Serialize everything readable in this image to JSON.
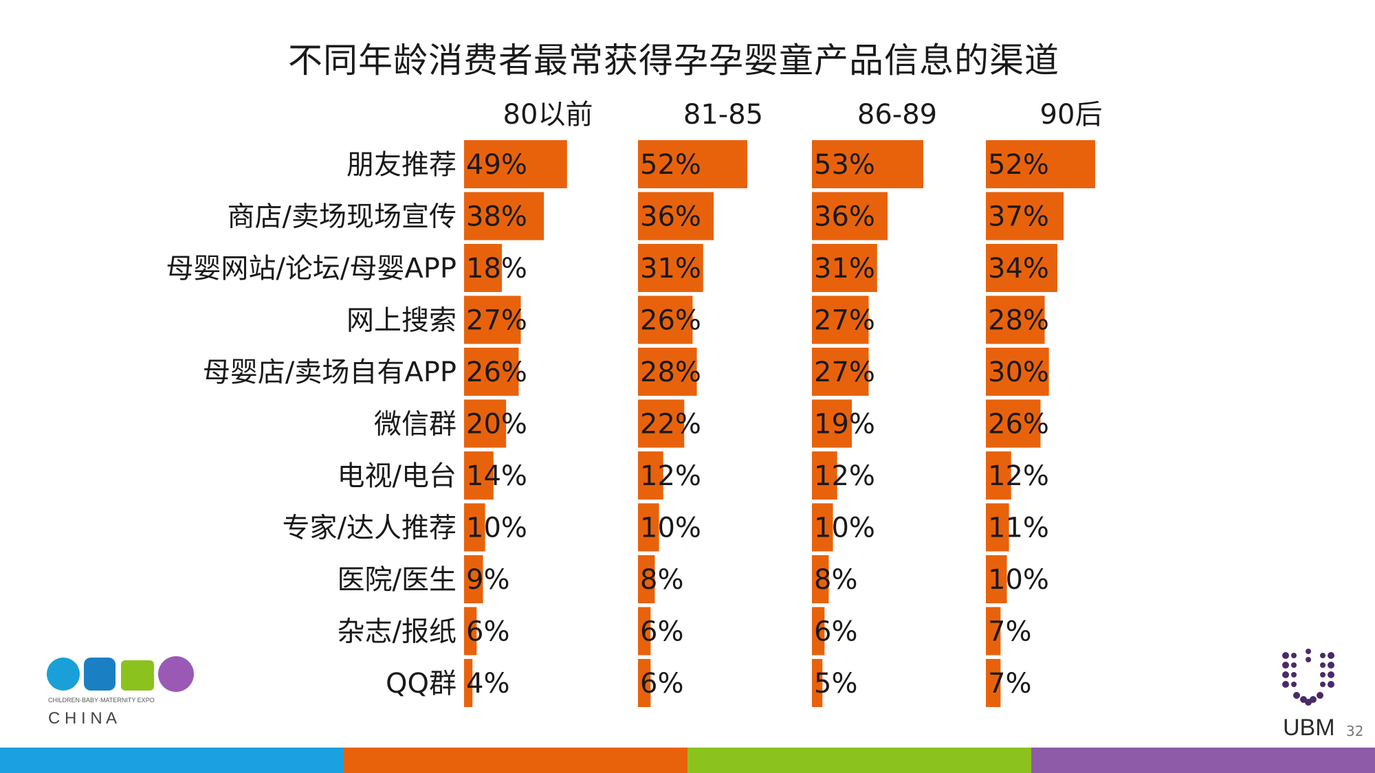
{
  "title": "不同年龄消费者最常获得孕孕婴童产品信息的渠道",
  "colors": {
    "bar": "#E8620C",
    "stripe": [
      "#1BA1E2",
      "#E8620C",
      "#8CC21E",
      "#8E5BA8"
    ],
    "logo_c": "#19A0D8",
    "logo_b": "#1B7FC4",
    "logo_m": "#8CC21E",
    "logo_e": "#9B59B6",
    "ubm": "#4A2A6A"
  },
  "chart_data": {
    "type": "bar",
    "orientation": "horizontal",
    "title": "不同年龄消费者最常获得孕孕婴童产品信息的渠道",
    "categories": [
      "朋友推荐",
      "商店/卖场现场宣传",
      "母婴网站/论坛/母婴APP",
      "网上搜索",
      "母婴店/卖场自有APP",
      "微信群",
      "电视/电台",
      "专家/达人推荐",
      "医院/医生",
      "杂志/报纸",
      "QQ群"
    ],
    "series": [
      {
        "name": "80以前",
        "values": [
          49,
          38,
          18,
          27,
          26,
          20,
          14,
          10,
          9,
          6,
          4
        ]
      },
      {
        "name": "81-85",
        "values": [
          52,
          36,
          31,
          26,
          28,
          22,
          12,
          10,
          8,
          6,
          6
        ]
      },
      {
        "name": "86-89",
        "values": [
          53,
          36,
          31,
          27,
          27,
          19,
          12,
          10,
          8,
          6,
          5
        ]
      },
      {
        "name": "90后",
        "values": [
          52,
          37,
          34,
          28,
          30,
          26,
          12,
          11,
          10,
          7,
          7
        ]
      }
    ],
    "unit": "%",
    "xlim": [
      0,
      100
    ]
  },
  "logos": {
    "cbme_subtitle": "CHILDREN·BABY·MATERNITY EXPO",
    "cbme_china": "C H I N A",
    "ubm": "UBM"
  },
  "page_number": "32"
}
